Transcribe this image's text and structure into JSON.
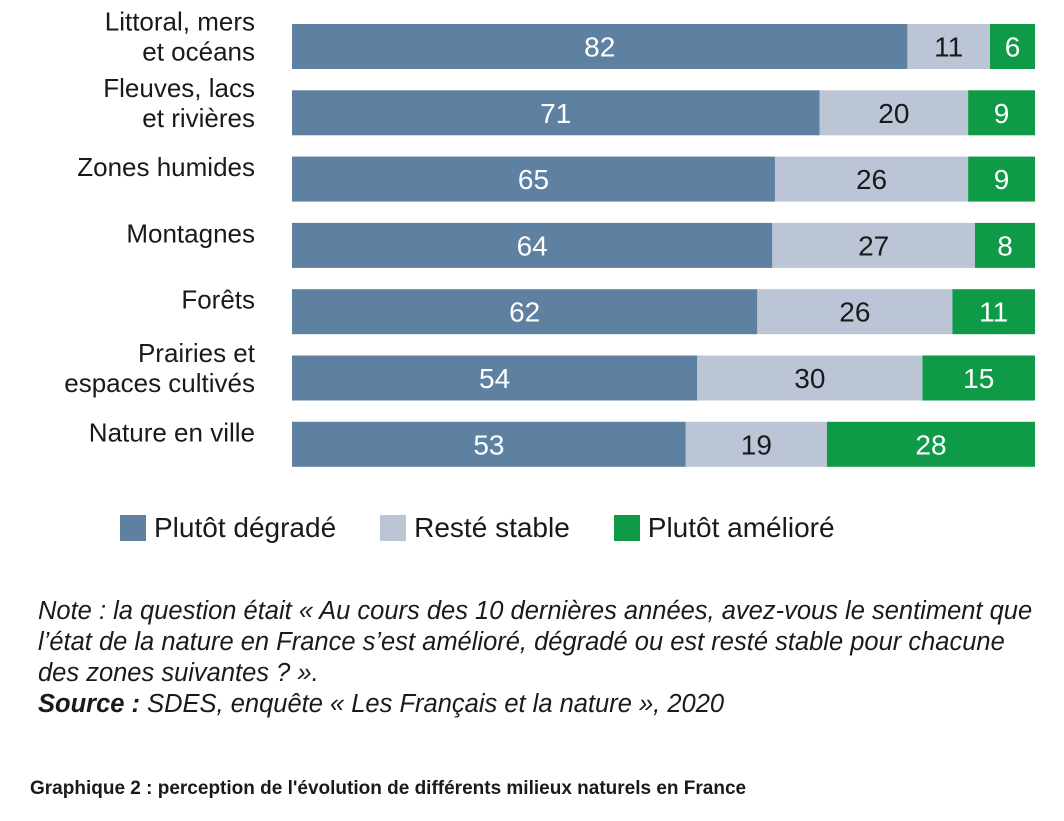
{
  "chart_data": {
    "type": "bar",
    "orientation": "horizontal",
    "stacked": true,
    "categories": [
      [
        "Littoral, mers",
        "et océans"
      ],
      [
        "Fleuves, lacs",
        "et rivières"
      ],
      [
        "Zones humides"
      ],
      [
        "Montagnes"
      ],
      [
        "Forêts"
      ],
      [
        "Prairies et",
        "espaces cultivés"
      ],
      [
        "Nature en ville"
      ]
    ],
    "series": [
      {
        "name": "Plutôt dégradé",
        "color": "#5e80a1",
        "label_color": "#ffffff",
        "values": [
          82,
          71,
          65,
          64,
          62,
          54,
          53
        ]
      },
      {
        "name": "Resté stable",
        "color": "#bcc5d6",
        "label_color": "#1a1a1a",
        "values": [
          11,
          20,
          26,
          27,
          26,
          30,
          19
        ]
      },
      {
        "name": "Plutôt amélioré",
        "color": "#0f9a48",
        "label_color": "#ffffff",
        "values": [
          6,
          9,
          9,
          8,
          11,
          15,
          28
        ]
      }
    ],
    "xlim": [
      0,
      100
    ],
    "grid": false,
    "legend_position": "bottom"
  },
  "note": {
    "text": "Note : la question était « Au cours des 10 dernières années, avez-vous le sentiment que l’état de la nature en France s’est amélioré, dégradé ou est resté stable pour chacune des zones suivantes ? ».",
    "source_label": "Source :",
    "source_text": " SDES, enquête « Les Français et la nature », 2020"
  },
  "caption": "Graphique 2 : perception de l'évolution de différents milieux naturels en France"
}
